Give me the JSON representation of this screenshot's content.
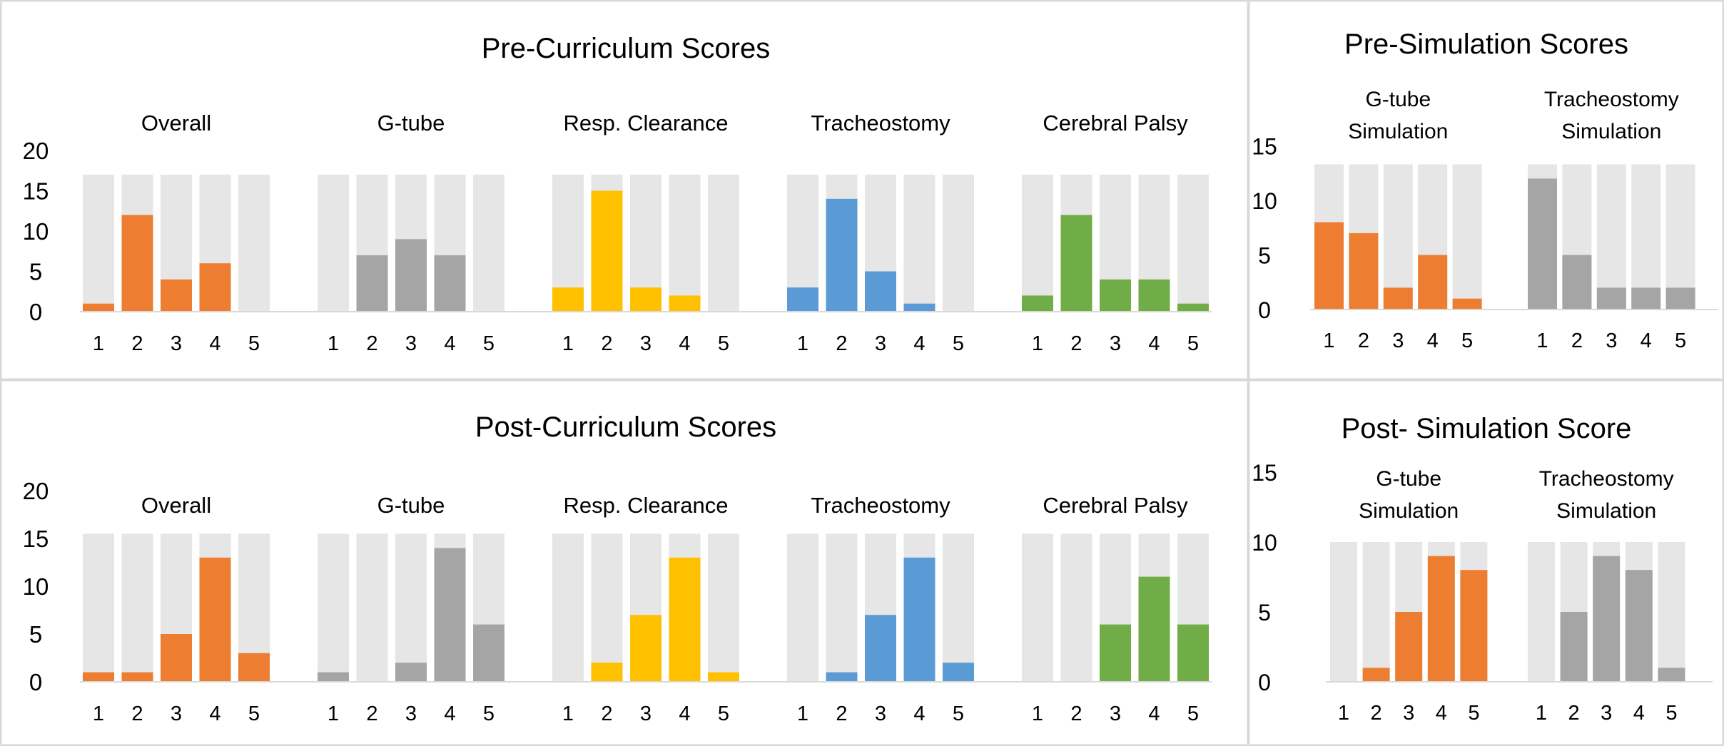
{
  "colors": {
    "background_bar": "#e7e6e6",
    "orange": "#ed7d31",
    "gray": "#a5a5a5",
    "yellow": "#ffc000",
    "blue": "#5b9bd5",
    "green": "#70ad47",
    "panel_border": "#d9d9d9",
    "baseline": "#d9d9d9"
  },
  "chart_data": [
    {
      "id": "pre-curriculum",
      "type": "bar",
      "title": "Pre-Curriculum Scores",
      "ylim": [
        0,
        20
      ],
      "yticks": [
        0,
        5,
        10,
        15,
        20
      ],
      "background_value": 17,
      "categories": [
        "1",
        "2",
        "3",
        "4",
        "5"
      ],
      "series": [
        {
          "name": "Overall",
          "color": "#ed7d31",
          "values": [
            1,
            12,
            4,
            6,
            0
          ]
        },
        {
          "name": "G-tube",
          "color": "#a5a5a5",
          "values": [
            0,
            7,
            9,
            7,
            0
          ]
        },
        {
          "name": "Resp. Clearance",
          "color": "#ffc000",
          "values": [
            3,
            15,
            3,
            2,
            0
          ]
        },
        {
          "name": "Tracheostomy",
          "color": "#5b9bd5",
          "values": [
            3,
            14,
            5,
            1,
            0
          ]
        },
        {
          "name": "Cerebral Palsy",
          "color": "#70ad47",
          "values": [
            2,
            12,
            4,
            4,
            1
          ]
        }
      ]
    },
    {
      "id": "post-curriculum",
      "type": "bar",
      "title": "Post-Curriculum Scores",
      "ylim": [
        0,
        20
      ],
      "yticks": [
        0,
        5,
        10,
        15,
        20
      ],
      "background_value": 15.5,
      "categories": [
        "1",
        "2",
        "3",
        "4",
        "5"
      ],
      "series": [
        {
          "name": "Overall",
          "color": "#ed7d31",
          "values": [
            1,
            1,
            5,
            13,
            3
          ]
        },
        {
          "name": "G-tube",
          "color": "#a5a5a5",
          "values": [
            1,
            0,
            2,
            14,
            6
          ]
        },
        {
          "name": "Resp. Clearance",
          "color": "#ffc000",
          "values": [
            0,
            2,
            7,
            13,
            1
          ]
        },
        {
          "name": "Tracheostomy",
          "color": "#5b9bd5",
          "values": [
            0,
            1,
            7,
            13,
            2
          ]
        },
        {
          "name": "Cerebral Palsy",
          "color": "#70ad47",
          "values": [
            0,
            0,
            6,
            11,
            6
          ]
        }
      ]
    },
    {
      "id": "pre-simulation",
      "type": "bar",
      "title": "Pre-Simulation Scores",
      "ylim": [
        0,
        15
      ],
      "yticks": [
        0,
        5,
        10,
        15
      ],
      "background_value": 13.3,
      "categories": [
        "1",
        "2",
        "3",
        "4",
        "5"
      ],
      "series": [
        {
          "name": "G-tube\nSimulation",
          "color": "#ed7d31",
          "values": [
            8,
            7,
            2,
            5,
            1
          ]
        },
        {
          "name": "Tracheostomy\nSimulation",
          "color": "#a5a5a5",
          "values": [
            12,
            5,
            2,
            2,
            2
          ]
        }
      ]
    },
    {
      "id": "post-simulation",
      "type": "bar",
      "title": "Post- Simulation Score",
      "ylim": [
        0,
        15
      ],
      "yticks": [
        0,
        5,
        10,
        15
      ],
      "background_value": 10,
      "categories": [
        "1",
        "2",
        "3",
        "4",
        "5"
      ],
      "series": [
        {
          "name": "G-tube\nSimulation",
          "color": "#ed7d31",
          "values": [
            0,
            1,
            5,
            9,
            8
          ]
        },
        {
          "name": "Tracheostomy\nSimulation",
          "color": "#a5a5a5",
          "values": [
            0,
            5,
            9,
            8,
            1
          ]
        }
      ]
    }
  ]
}
